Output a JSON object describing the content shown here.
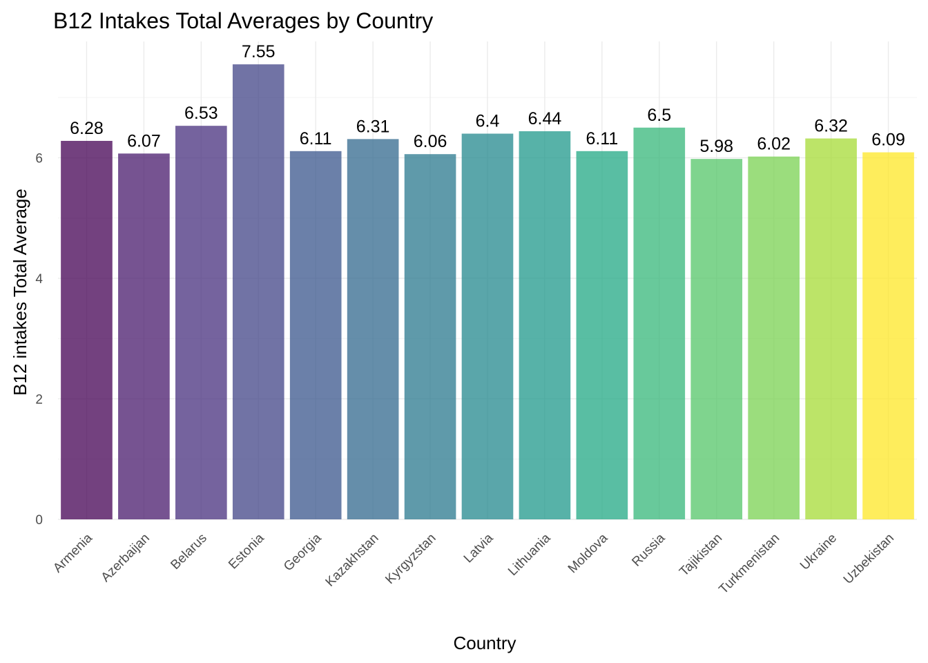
{
  "chart_data": {
    "type": "bar",
    "title": "B12 Intakes Total Averages by Country",
    "xlabel": "Country",
    "ylabel": "B12 intakes Total Average",
    "categories": [
      "Armenia",
      "Azerbaijan",
      "Belarus",
      "Estonia",
      "Georgia",
      "Kazakhstan",
      "Kyrgyzstan",
      "Latvia",
      "Lithuania",
      "Moldova",
      "Russia",
      "Tajikistan",
      "Turkmenistan",
      "Ukraine",
      "Uzbekistan"
    ],
    "values": [
      6.28,
      6.07,
      6.53,
      7.55,
      6.11,
      6.31,
      6.06,
      6.4,
      6.44,
      6.11,
      6.5,
      5.98,
      6.02,
      6.32,
      6.09
    ],
    "data_labels": [
      "6.28",
      "6.07",
      "6.53",
      "7.55",
      "6.11",
      "6.31",
      "6.06",
      "6.4",
      "6.44",
      "6.11",
      "6.5",
      "5.98",
      "6.02",
      "6.32",
      "6.09"
    ],
    "colors": [
      "#440154",
      "#481A6C",
      "#472F7D",
      "#414487",
      "#39568C",
      "#31688E",
      "#2A788E",
      "#23888E",
      "#1F988B",
      "#22A884",
      "#35B779",
      "#54C568",
      "#7AD151",
      "#A5DB36",
      "#FDE725"
    ],
    "y_ticks": [
      0,
      2,
      4,
      6
    ],
    "y_tick_labels": [
      "0",
      "2",
      "4",
      "6"
    ],
    "ylim": [
      0,
      7.93
    ],
    "grid": true,
    "legend": "none"
  }
}
